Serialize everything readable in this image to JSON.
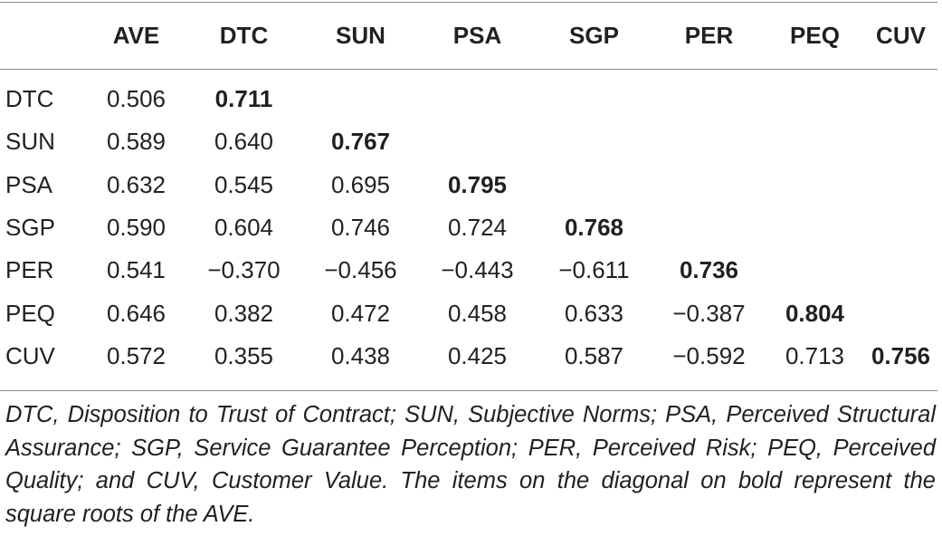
{
  "table": {
    "headers": [
      "",
      "AVE",
      "DTC",
      "SUN",
      "PSA",
      "SGP",
      "PER",
      "PEQ",
      "CUV"
    ],
    "rows": [
      {
        "label": "DTC",
        "cells": [
          "0.506",
          "0.711",
          "",
          "",
          "",
          "",
          "",
          ""
        ],
        "diag_index": 1
      },
      {
        "label": "SUN",
        "cells": [
          "0.589",
          "0.640",
          "0.767",
          "",
          "",
          "",
          "",
          ""
        ],
        "diag_index": 2
      },
      {
        "label": "PSA",
        "cells": [
          "0.632",
          "0.545",
          "0.695",
          "0.795",
          "",
          "",
          "",
          ""
        ],
        "diag_index": 3
      },
      {
        "label": "SGP",
        "cells": [
          "0.590",
          "0.604",
          "0.746",
          "0.724",
          "0.768",
          "",
          "",
          ""
        ],
        "diag_index": 4
      },
      {
        "label": "PER",
        "cells": [
          "0.541",
          "−0.370",
          "−0.456",
          "−0.443",
          "−0.611",
          "0.736",
          "",
          ""
        ],
        "diag_index": 5
      },
      {
        "label": "PEQ",
        "cells": [
          "0.646",
          "0.382",
          "0.472",
          "0.458",
          "0.633",
          "−0.387",
          "0.804",
          ""
        ],
        "diag_index": 6
      },
      {
        "label": "CUV",
        "cells": [
          "0.572",
          "0.355",
          "0.438",
          "0.425",
          "0.587",
          "−0.592",
          "0.713",
          "0.756"
        ],
        "diag_index": 7
      }
    ]
  },
  "footnote": "DTC, Disposition to Trust of Contract; SUN, Subjective Norms; PSA, Perceived Structural Assurance; SGP, Service Guarantee Perception; PER, Perceived Risk; PEQ, Perceived Quality; and CUV, Customer Value. The items on the diagonal on bold represent the square roots of the AVE."
}
